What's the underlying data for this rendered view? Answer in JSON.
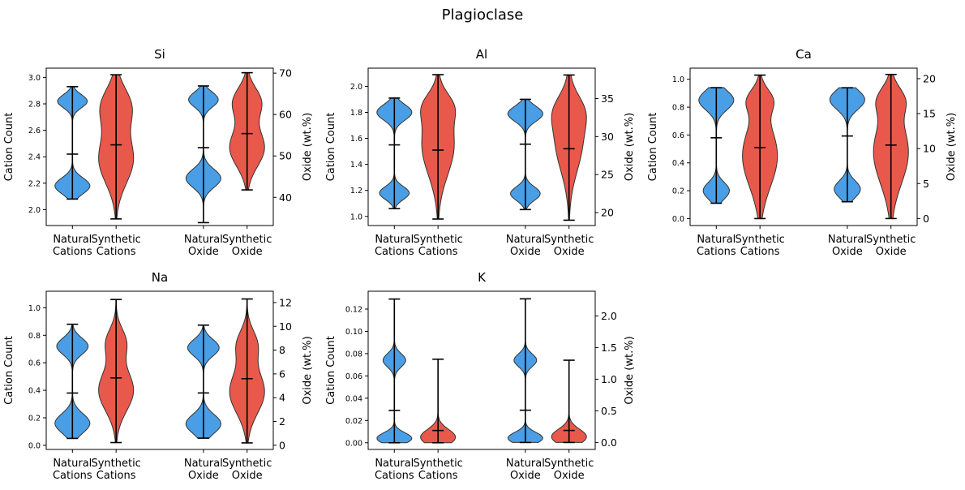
{
  "figure": {
    "suptitle": "Plagioclase"
  },
  "colors": {
    "natural": "#4a9ee5",
    "synthetic": "#e8594c",
    "outline": "#333333"
  },
  "chart_data": [
    {
      "type": "violin",
      "title": "Si",
      "ylabel_left": "Cation Count",
      "ylabel_right": "Oxide (wt.%)",
      "categories": [
        "Natural\nCations",
        "Synthetic\nCations",
        "Natural\nOxide",
        "Synthetic\nOxide"
      ],
      "ylim_left": [
        1.88,
        3.07
      ],
      "yticks_left": [
        "2.0",
        "2.2",
        "2.4",
        "2.6",
        "2.8",
        "3.0"
      ],
      "ylim_right": [
        33.2,
        71.2
      ],
      "yticks_right": [
        "40",
        "50",
        "60",
        "70"
      ],
      "series": [
        {
          "name": "Natural Cations",
          "axis": "left",
          "min": 2.08,
          "max": 2.93,
          "mean": 2.42,
          "modes": [
            {
              "y": 2.18,
              "w": 1.0,
              "s": 0.06
            },
            {
              "y": 2.82,
              "w": 0.85,
              "s": 0.05
            }
          ]
        },
        {
          "name": "Synthetic Cations",
          "axis": "left",
          "min": 1.93,
          "max": 3.02,
          "mean": 2.49,
          "modes": [
            {
              "y": 2.38,
              "w": 1.0,
              "s": 0.18
            },
            {
              "y": 2.78,
              "w": 0.85,
              "s": 0.14
            }
          ]
        },
        {
          "name": "Natural Oxide",
          "axis": "right",
          "min": 33.9,
          "max": 66.9,
          "mean": 52.0,
          "modes": [
            {
              "y": 44.6,
              "w": 1.0,
              "s": 2.2
            },
            {
              "y": 63.6,
              "w": 0.85,
              "s": 1.8
            }
          ]
        },
        {
          "name": "Synthetic Oxide",
          "axis": "right",
          "min": 41.8,
          "max": 70.1,
          "mean": 55.4,
          "modes": [
            {
              "y": 52.0,
              "w": 1.0,
              "s": 4.5
            },
            {
              "y": 63.0,
              "w": 0.8,
              "s": 3.5
            }
          ]
        }
      ]
    },
    {
      "type": "violin",
      "title": "Al",
      "ylabel_left": "Cation Count",
      "ylabel_right": "Oxide (wt.%)",
      "categories": [
        "Natural\nCations",
        "Synthetic\nCations",
        "Natural\nOxide",
        "Synthetic\nOxide"
      ],
      "ylim_left": [
        0.93,
        2.14
      ],
      "yticks_left": [
        "1.0",
        "1.2",
        "1.4",
        "1.6",
        "1.8",
        "2.0"
      ],
      "ylim_right": [
        18.3,
        39.0
      ],
      "yticks_right": [
        "20",
        "25",
        "30",
        "35"
      ],
      "series": [
        {
          "name": "Natural Cations",
          "axis": "left",
          "min": 1.06,
          "max": 1.91,
          "mean": 1.55,
          "modes": [
            {
              "y": 1.18,
              "w": 0.85,
              "s": 0.05
            },
            {
              "y": 1.8,
              "w": 1.0,
              "s": 0.06
            }
          ]
        },
        {
          "name": "Synthetic Cations",
          "axis": "left",
          "min": 0.98,
          "max": 2.09,
          "mean": 1.51,
          "modes": [
            {
              "y": 1.55,
              "w": 1.0,
              "s": 0.23
            },
            {
              "y": 1.85,
              "w": 0.6,
              "s": 0.1
            }
          ]
        },
        {
          "name": "Natural Oxide",
          "axis": "right",
          "min": 20.4,
          "max": 34.9,
          "mean": 29.0,
          "modes": [
            {
              "y": 22.5,
              "w": 0.85,
              "s": 0.9
            },
            {
              "y": 33.0,
              "w": 1.0,
              "s": 1.0
            }
          ]
        },
        {
          "name": "Synthetic Oxide",
          "axis": "right",
          "min": 19.0,
          "max": 38.1,
          "mean": 28.4,
          "modes": [
            {
              "y": 29.5,
              "w": 1.0,
              "s": 4.0
            },
            {
              "y": 33.5,
              "w": 0.6,
              "s": 2.0
            }
          ]
        }
      ]
    },
    {
      "type": "violin",
      "title": "Ca",
      "ylabel_left": "Cation Count",
      "ylabel_right": "Oxide (wt.%)",
      "categories": [
        "Natural\nCations",
        "Synthetic\nCations",
        "Natural\nOxide",
        "Synthetic\nOxide"
      ],
      "ylim_left": [
        -0.05,
        1.08
      ],
      "yticks_left": [
        "0.0",
        "0.2",
        "0.4",
        "0.6",
        "0.8",
        "1.0"
      ],
      "ylim_right": [
        -1.0,
        21.5
      ],
      "yticks_right": [
        "0",
        "5",
        "10",
        "15",
        "20"
      ],
      "series": [
        {
          "name": "Natural Cations",
          "axis": "left",
          "min": 0.11,
          "max": 0.94,
          "mean": 0.58,
          "modes": [
            {
              "y": 0.2,
              "w": 0.75,
              "s": 0.06
            },
            {
              "y": 0.85,
              "w": 1.0,
              "s": 0.07
            }
          ]
        },
        {
          "name": "Synthetic Cations",
          "axis": "left",
          "min": 0.0,
          "max": 1.03,
          "mean": 0.51,
          "modes": [
            {
              "y": 0.45,
              "w": 1.0,
              "s": 0.22
            },
            {
              "y": 0.85,
              "w": 0.6,
              "s": 0.08
            }
          ]
        },
        {
          "name": "Natural Oxide",
          "axis": "right",
          "min": 2.4,
          "max": 18.7,
          "mean": 11.8,
          "modes": [
            {
              "y": 4.2,
              "w": 0.75,
              "s": 1.2
            },
            {
              "y": 17.0,
              "w": 1.0,
              "s": 1.4
            }
          ]
        },
        {
          "name": "Synthetic Oxide",
          "axis": "right",
          "min": 0.0,
          "max": 20.6,
          "mean": 10.5,
          "modes": [
            {
              "y": 9.5,
              "w": 1.0,
              "s": 4.5
            },
            {
              "y": 17.0,
              "w": 0.6,
              "s": 1.8
            }
          ]
        }
      ]
    },
    {
      "type": "violin",
      "title": "Na",
      "ylabel_left": "Cation Count",
      "ylabel_right": "Oxide (wt.%)",
      "categories": [
        "Natural\nCations",
        "Synthetic\nCations",
        "Natural\nOxide",
        "Synthetic\nOxide"
      ],
      "ylim_left": [
        -0.03,
        1.12
      ],
      "yticks_left": [
        "0.0",
        "0.2",
        "0.4",
        "0.6",
        "0.8",
        "1.0"
      ],
      "ylim_right": [
        -0.35,
        12.95
      ],
      "yticks_right": [
        "0",
        "2",
        "4",
        "6",
        "8",
        "10",
        "12"
      ],
      "series": [
        {
          "name": "Natural Cations",
          "axis": "left",
          "min": 0.05,
          "max": 0.88,
          "mean": 0.38,
          "modes": [
            {
              "y": 0.16,
              "w": 1.0,
              "s": 0.07
            },
            {
              "y": 0.72,
              "w": 0.9,
              "s": 0.06
            }
          ]
        },
        {
          "name": "Synthetic Cations",
          "axis": "left",
          "min": 0.02,
          "max": 1.06,
          "mean": 0.49,
          "modes": [
            {
              "y": 0.4,
              "w": 1.0,
              "s": 0.15
            },
            {
              "y": 0.75,
              "w": 0.55,
              "s": 0.1
            }
          ]
        },
        {
          "name": "Natural Oxide",
          "axis": "right",
          "min": 0.6,
          "max": 10.1,
          "mean": 4.4,
          "modes": [
            {
              "y": 1.8,
              "w": 1.0,
              "s": 0.8
            },
            {
              "y": 8.2,
              "w": 0.9,
              "s": 0.7
            }
          ]
        },
        {
          "name": "Synthetic Oxide",
          "axis": "right",
          "min": 0.2,
          "max": 12.3,
          "mean": 5.6,
          "modes": [
            {
              "y": 4.5,
              "w": 1.0,
              "s": 1.8
            },
            {
              "y": 8.5,
              "w": 0.55,
              "s": 1.2
            }
          ]
        }
      ]
    },
    {
      "type": "violin",
      "title": "K",
      "ylabel_left": "Cation Count",
      "ylabel_right": "Oxide (wt.%)",
      "categories": [
        "Natural\nCations",
        "Synthetic\nCations",
        "Natural\nOxide",
        "Synthetic\nOxide"
      ],
      "ylim_left": [
        -0.006,
        0.136
      ],
      "yticks_left": [
        "0.00",
        "0.02",
        "0.04",
        "0.06",
        "0.08",
        "0.10",
        "0.12"
      ],
      "ylim_right": [
        -0.11,
        2.39
      ],
      "yticks_right": [
        "0.0",
        "0.5",
        "1.0",
        "1.5",
        "2.0"
      ],
      "series": [
        {
          "name": "Natural Cations",
          "axis": "left",
          "min": 0.0,
          "max": 0.129,
          "mean": 0.029,
          "modes": [
            {
              "y": 0.004,
              "w": 1.0,
              "s": 0.005
            },
            {
              "y": 0.074,
              "w": 0.65,
              "s": 0.006
            }
          ]
        },
        {
          "name": "Synthetic Cations",
          "axis": "left",
          "min": 0.0,
          "max": 0.075,
          "mean": 0.011,
          "modes": [
            {
              "y": 0.005,
              "w": 1.0,
              "s": 0.007
            }
          ]
        },
        {
          "name": "Natural Oxide",
          "axis": "right",
          "min": 0.0,
          "max": 2.27,
          "mean": 0.51,
          "modes": [
            {
              "y": 0.07,
              "w": 1.0,
              "s": 0.09
            },
            {
              "y": 1.3,
              "w": 0.65,
              "s": 0.1
            }
          ]
        },
        {
          "name": "Synthetic Oxide",
          "axis": "right",
          "min": 0.0,
          "max": 1.3,
          "mean": 0.19,
          "modes": [
            {
              "y": 0.09,
              "w": 1.0,
              "s": 0.12
            }
          ]
        }
      ]
    }
  ]
}
